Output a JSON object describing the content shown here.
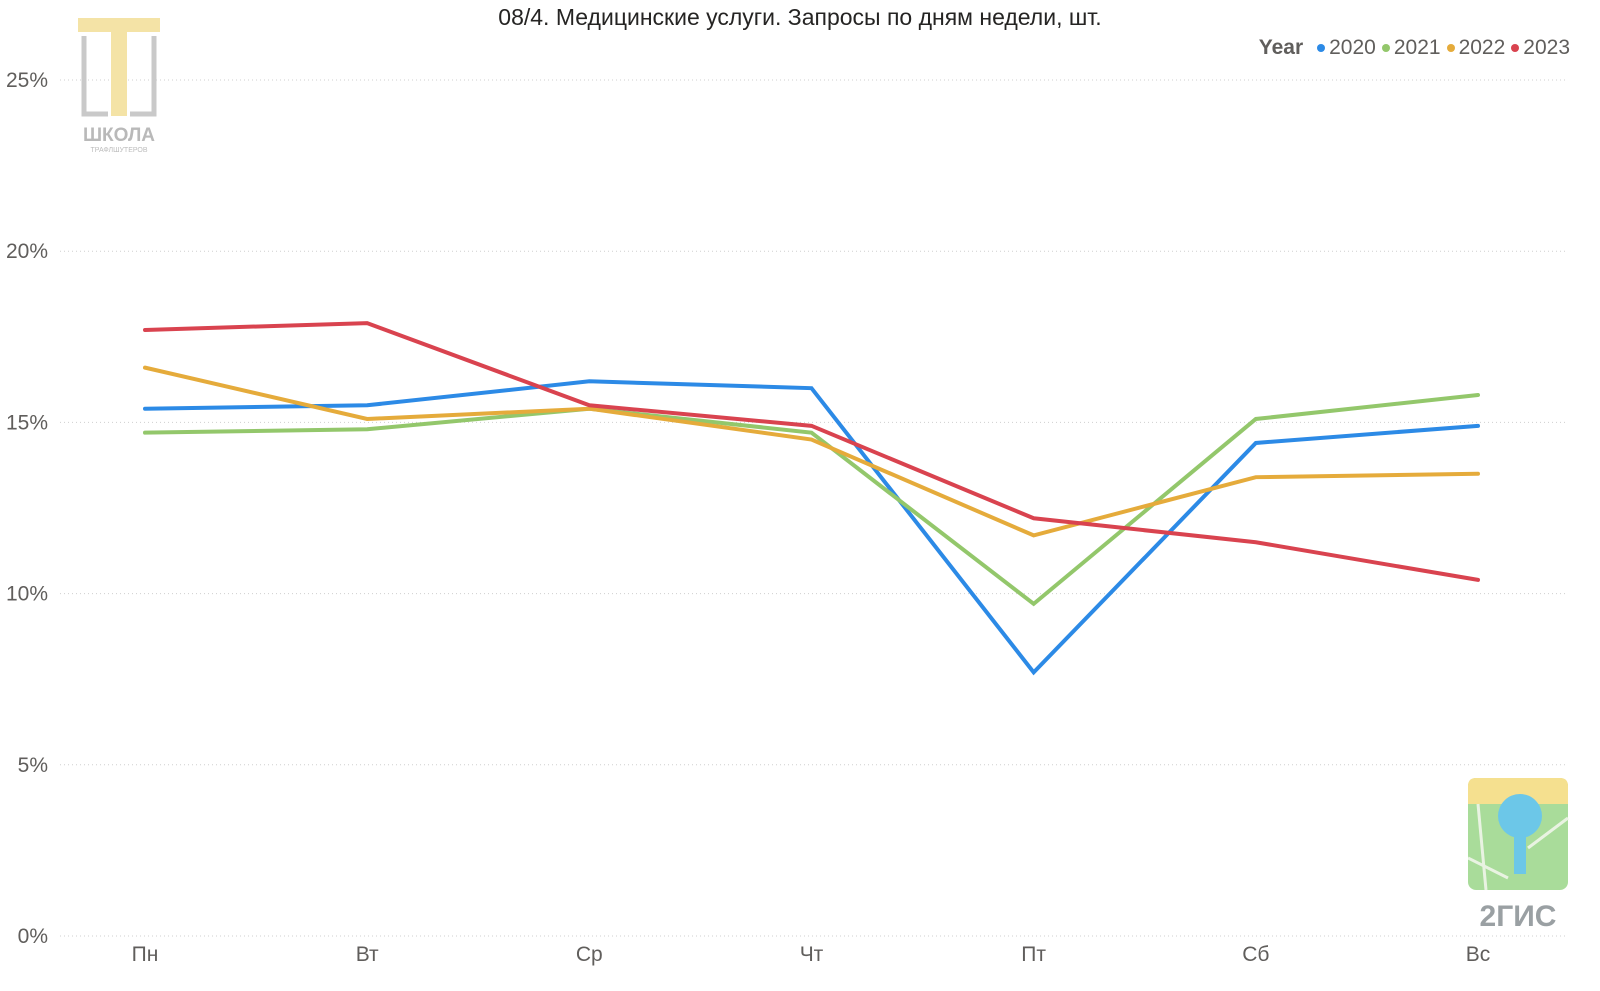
{
  "chart_data": {
    "type": "line",
    "title": "08/4. Медицинские услуги. Запросы по дням недели, шт.",
    "legend_title": "Year",
    "legend_position": "top-right",
    "grid": true,
    "ylim": [
      0,
      25
    ],
    "y_ticks": [
      "0%",
      "5%",
      "10%",
      "15%",
      "20%",
      "25%"
    ],
    "categories": [
      "Пн",
      "Вт",
      "Ср",
      "Чт",
      "Пт",
      "Сб",
      "Вс"
    ],
    "series": [
      {
        "name": "2020",
        "color": "#2c8ae6",
        "values": [
          15.4,
          15.5,
          16.2,
          16.0,
          7.7,
          14.4,
          14.9
        ]
      },
      {
        "name": "2021",
        "color": "#93c76b",
        "values": [
          14.7,
          14.8,
          15.4,
          14.7,
          9.7,
          15.1,
          15.8
        ]
      },
      {
        "name": "2022",
        "color": "#e5ab3b",
        "values": [
          16.6,
          15.1,
          15.4,
          14.5,
          11.7,
          13.4,
          13.5
        ]
      },
      {
        "name": "2023",
        "color": "#d9434f",
        "values": [
          17.7,
          17.9,
          15.5,
          14.9,
          12.2,
          11.5,
          10.4
        ]
      }
    ]
  },
  "logos": {
    "school_text": "ШКОЛА",
    "school_subtext": "ТРАФЛШУТЕРОВ",
    "gis_text": "2ГИС"
  }
}
